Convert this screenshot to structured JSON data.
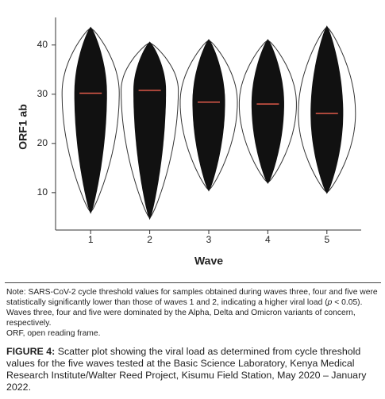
{
  "chart_data": {
    "type": "violin",
    "y_label": "ORF1 ab",
    "x_label": "Wave",
    "categories": [
      "1",
      "2",
      "3",
      "4",
      "5"
    ],
    "medians": [
      30.2,
      30.8,
      28.4,
      28.0,
      26.1
    ],
    "mins": [
      6.0,
      4.8,
      10.5,
      12.0,
      10.0
    ],
    "maxs": [
      43.5,
      40.5,
      41.0,
      41.0,
      43.7
    ],
    "ylim": [
      2.4,
      45.6
    ],
    "yticks": [
      10,
      20,
      30,
      40
    ],
    "color": "#111111",
    "median_color": "#e05a4a"
  },
  "note": {
    "before": "Note: SARS-CoV-2 cycle threshold values for samples obtained during waves three, four and five were statistically significantly lower than those of waves 1 and 2, indicating a higher viral load (",
    "p": "p",
    "after": " < 0.05). Waves three, four and five were dominated by the Alpha, Delta and Omicron variants of concern, respectively."
  },
  "abbreviation": "ORF, open reading frame.",
  "caption": {
    "label": "FIGURE 4:",
    "text": " Scatter plot showing the viral load as determined from cycle threshold values for the five waves tested at the Basic Science Laboratory, Kenya Medical Research Institute/Walter Reed Project, Kisumu Field Station, May 2020 – January 2022."
  }
}
